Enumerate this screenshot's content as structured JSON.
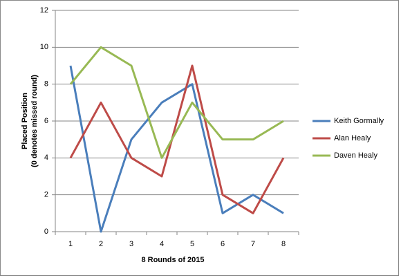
{
  "chart_data": {
    "type": "line",
    "xlabel": "8 Rounds of 2015",
    "ylabel": [
      "Placed Position",
      "(0 denotes missed round)"
    ],
    "categories": [
      "1",
      "2",
      "3",
      "4",
      "5",
      "6",
      "7",
      "8"
    ],
    "series": [
      {
        "name": "Keith Gormally",
        "color": "#4a7ebb",
        "values": [
          9,
          0,
          5,
          7,
          8,
          1,
          2,
          1
        ]
      },
      {
        "name": "Alan Healy",
        "color": "#be4b48",
        "values": [
          4,
          7,
          4,
          3,
          9,
          2,
          1,
          4
        ]
      },
      {
        "name": "Daven Healy",
        "color": "#98b954",
        "values": [
          8,
          10,
          9,
          4,
          7,
          5,
          5,
          6
        ]
      }
    ],
    "ylim": [
      0,
      12
    ],
    "yticks": [
      0,
      2,
      4,
      6,
      8,
      10,
      12
    ],
    "grid": true,
    "legend": "right"
  }
}
